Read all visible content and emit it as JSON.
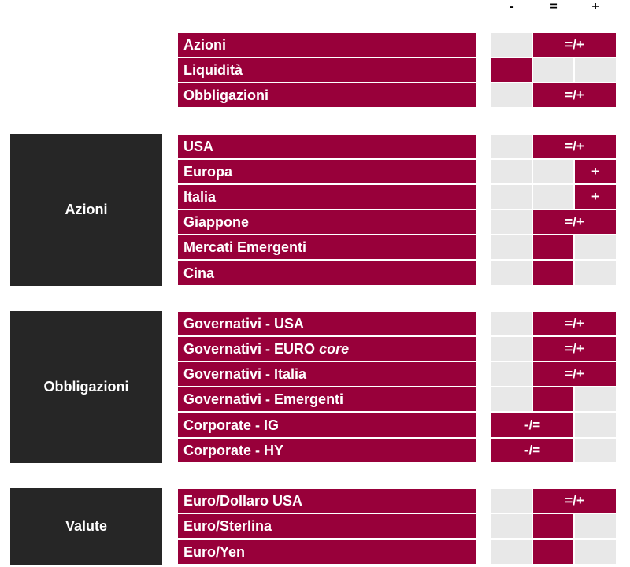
{
  "header": {
    "minus": "-",
    "neutral": "=",
    "plus": "+"
  },
  "groups": [
    {
      "label": "",
      "rows": [
        {
          "label": "Azioni",
          "view": "eq-plus",
          "marker_text": "=/+"
        },
        {
          "label": "Liquidità",
          "view": "minus",
          "marker_text": ""
        },
        {
          "label": "Obbligazioni",
          "view": "eq-plus",
          "marker_text": "=/+"
        }
      ]
    },
    {
      "label": "Azioni",
      "rows": [
        {
          "label": "USA",
          "view": "eq-plus",
          "marker_text": "=/+"
        },
        {
          "label": "Europa",
          "view": "plus",
          "marker_text": "+"
        },
        {
          "label": "Italia",
          "view": "plus",
          "marker_text": "+"
        },
        {
          "label": "Giappone",
          "view": "eq-plus",
          "marker_text": "=/+"
        },
        {
          "label": "Mercati Emergenti",
          "view": "eq",
          "marker_text": ""
        },
        {
          "label": "Cina",
          "view": "eq",
          "marker_text": ""
        }
      ]
    },
    {
      "label": "Obbligazioni",
      "rows": [
        {
          "label": "Governativi - USA",
          "view": "eq-plus",
          "marker_text": "=/+"
        },
        {
          "label": "Governativi - EURO",
          "label_italic": "core",
          "view": "eq-plus",
          "marker_text": "=/+"
        },
        {
          "label": "Governativi - Italia",
          "view": "eq-plus",
          "marker_text": "=/+"
        },
        {
          "label": "Governativi - Emergenti",
          "view": "eq",
          "marker_text": ""
        },
        {
          "label": "Corporate - IG",
          "view": "minus-eq",
          "marker_text": "-/="
        },
        {
          "label": "Corporate - HY",
          "view": "minus-eq",
          "marker_text": "-/="
        }
      ]
    },
    {
      "label": "Valute",
      "rows": [
        {
          "label": "Euro/Dollaro USA",
          "view": "eq-plus",
          "marker_text": "=/+"
        },
        {
          "label": "Euro/Sterlina",
          "view": "eq",
          "marker_text": ""
        },
        {
          "label": "Euro/Yen",
          "view": "eq",
          "marker_text": ""
        }
      ]
    }
  ],
  "colors": {
    "accent": "#98003a",
    "group_bg": "#262626",
    "cell_bg": "#e8e8e8"
  }
}
